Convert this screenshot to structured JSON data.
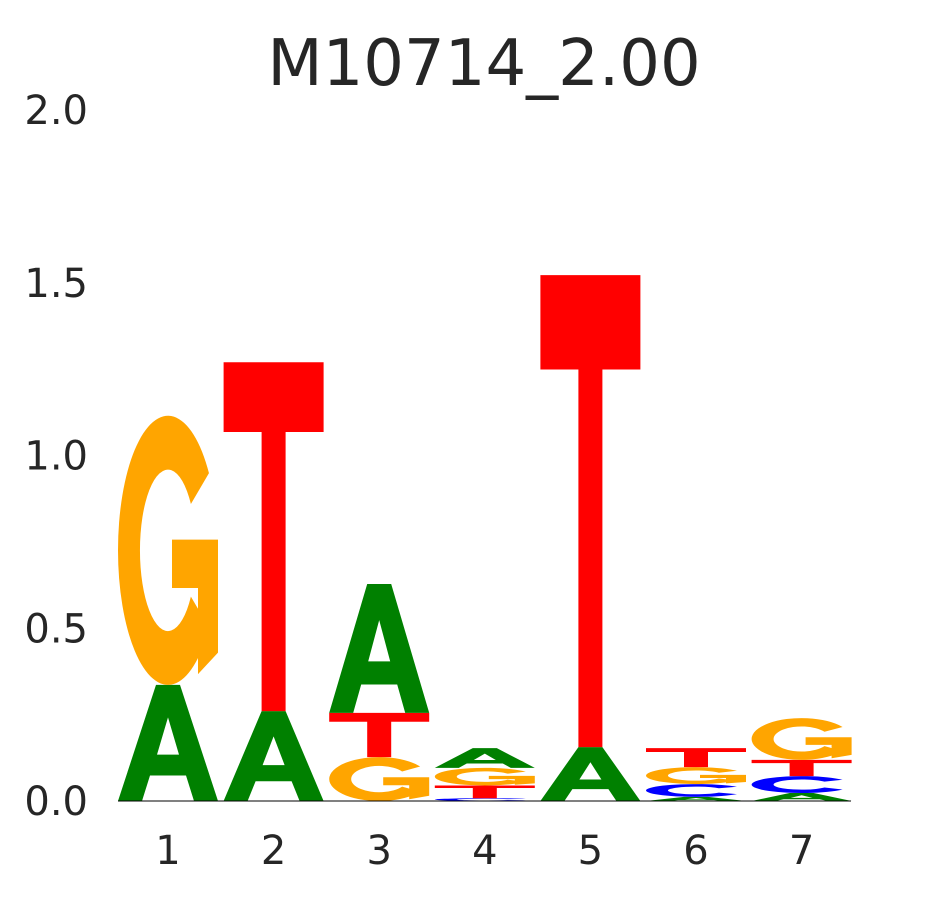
{
  "chart_data": {
    "type": "sequence-logo",
    "title": "M10714_2.00",
    "xlabel": "",
    "ylabel": "",
    "ylim": [
      0,
      2.0
    ],
    "yticks": [
      "0.0",
      "0.5",
      "1.0",
      "1.5",
      "2.0"
    ],
    "categories": [
      "1",
      "2",
      "3",
      "4",
      "5",
      "6",
      "7"
    ],
    "colors": {
      "A": "#008000",
      "C": "#0000ff",
      "G": "#ffa500",
      "T": "#ff0000"
    },
    "grid": false,
    "positions": [
      {
        "stack": [
          {
            "base": "A",
            "height": 0.336
          },
          {
            "base": "G",
            "height": 0.779
          }
        ]
      },
      {
        "stack": [
          {
            "base": "A",
            "height": 0.26
          },
          {
            "base": "T",
            "height": 1.01
          }
        ]
      },
      {
        "stack": [
          {
            "base": "G",
            "height": 0.127
          },
          {
            "base": "T",
            "height": 0.128
          },
          {
            "base": "A",
            "height": 0.373
          }
        ]
      },
      {
        "stack": [
          {
            "base": "C",
            "height": 0.008
          },
          {
            "base": "T",
            "height": 0.037
          },
          {
            "base": "G",
            "height": 0.051
          },
          {
            "base": "A",
            "height": 0.057
          }
        ]
      },
      {
        "stack": [
          {
            "base": "A",
            "height": 0.156
          },
          {
            "base": "T",
            "height": 1.366
          }
        ]
      },
      {
        "stack": [
          {
            "base": "A",
            "height": 0.012
          },
          {
            "base": "C",
            "height": 0.037
          },
          {
            "base": "G",
            "height": 0.049
          },
          {
            "base": "T",
            "height": 0.055
          }
        ]
      },
      {
        "stack": [
          {
            "base": "A",
            "height": 0.023
          },
          {
            "base": "C",
            "height": 0.049
          },
          {
            "base": "T",
            "height": 0.047
          },
          {
            "base": "G",
            "height": 0.121
          }
        ]
      }
    ]
  }
}
